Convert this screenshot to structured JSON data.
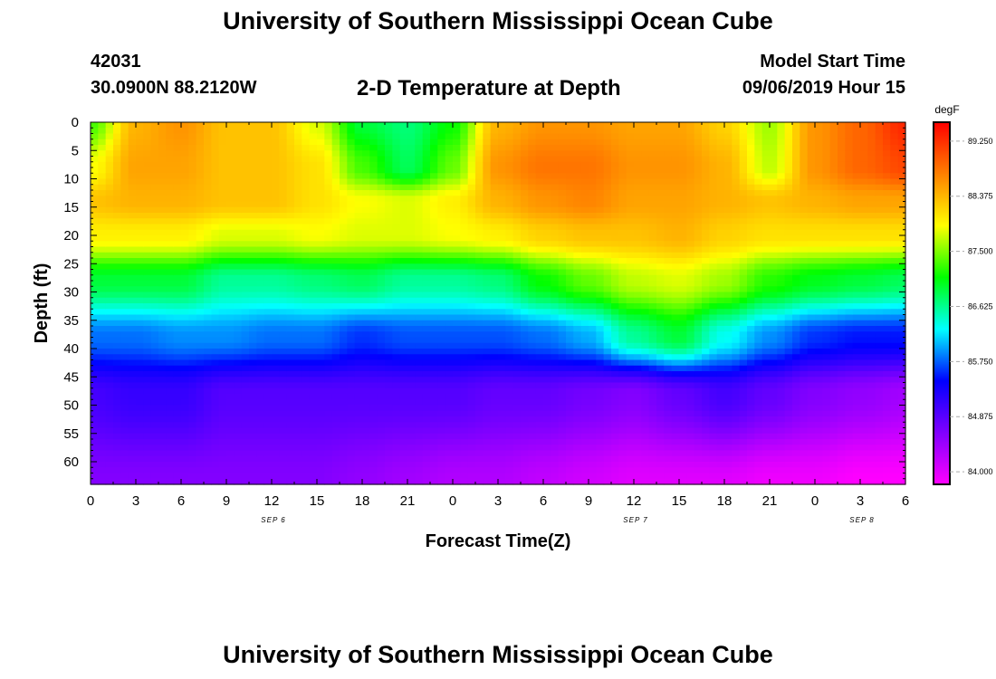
{
  "header": {
    "title": "University of Southern Mississippi Ocean Cube",
    "station_id": "42031",
    "station_coords": "30.0900N 88.2120W",
    "plot_title": "2-D Temperature at Depth",
    "model_start_label": "Model Start Time",
    "model_start_value": "09/06/2019 Hour 15"
  },
  "footer": {
    "title": "University of Southern Mississippi Ocean Cube"
  },
  "chart_data": {
    "type": "heatmap",
    "title": "2-D Temperature at Depth",
    "xlabel": "Forecast Time(Z)",
    "ylabel": "Depth (ft)",
    "x_tick_labels": [
      "0",
      "3",
      "6",
      "9",
      "12",
      "15",
      "18",
      "21",
      "0",
      "3",
      "6",
      "9",
      "12",
      "15",
      "18",
      "21",
      "0",
      "3",
      "6"
    ],
    "date_labels": [
      {
        "label": "SEP 6",
        "at_tick": 4
      },
      {
        "label": "SEP 7",
        "at_tick": 12
      },
      {
        "label": "SEP 8",
        "at_tick": 17
      }
    ],
    "y_tick_labels": [
      "0",
      "5",
      "10",
      "15",
      "20",
      "25",
      "30",
      "35",
      "40",
      "45",
      "50",
      "55",
      "60"
    ],
    "y_ticks": [
      0,
      5,
      10,
      15,
      20,
      25,
      30,
      35,
      40,
      45,
      50,
      55,
      60
    ],
    "ylim": [
      0,
      64
    ],
    "x_hours_range": [
      0,
      54
    ],
    "colorbar": {
      "unit": "degF",
      "ticks": [
        "89.250",
        "88.375",
        "87.500",
        "86.625",
        "85.750",
        "84.875",
        "84.000"
      ],
      "tick_values": [
        89.25,
        88.375,
        87.5,
        86.625,
        85.75,
        84.875,
        84.0
      ],
      "range": [
        83.8,
        89.55
      ],
      "colors": [
        "#ff00ff",
        "#8000ff",
        "#0000ff",
        "#00ffff",
        "#00ff00",
        "#ffff00",
        "#ff8000",
        "#ff0000"
      ]
    },
    "field_description_depths_ft": [
      0,
      8,
      14,
      20,
      28,
      38,
      48,
      64
    ],
    "columns": [
      {
        "hour": 0,
        "temps": [
          87.3,
          87.9,
          88.3,
          88.0,
          86.9,
          85.8,
          85.0,
          84.6
        ]
      },
      {
        "hour": 3,
        "temps": [
          88.4,
          88.5,
          88.4,
          88.0,
          86.9,
          85.8,
          85.1,
          84.6
        ]
      },
      {
        "hour": 6,
        "temps": [
          88.6,
          88.5,
          88.4,
          88.0,
          86.9,
          85.9,
          85.1,
          84.6
        ]
      },
      {
        "hour": 9,
        "temps": [
          88.3,
          88.3,
          88.3,
          87.8,
          86.6,
          85.9,
          84.9,
          84.6
        ]
      },
      {
        "hour": 12,
        "temps": [
          88.3,
          88.3,
          88.3,
          87.8,
          86.6,
          85.8,
          84.9,
          84.6
        ]
      },
      {
        "hour": 15,
        "temps": [
          87.8,
          88.1,
          88.1,
          87.9,
          86.7,
          85.8,
          84.9,
          84.6
        ]
      },
      {
        "hour": 18,
        "temps": [
          86.9,
          87.3,
          87.9,
          87.8,
          86.8,
          85.6,
          84.9,
          84.5
        ]
      },
      {
        "hour": 21,
        "temps": [
          86.7,
          86.8,
          87.8,
          87.8,
          86.6,
          85.7,
          84.9,
          84.4
        ]
      },
      {
        "hour": 24,
        "temps": [
          87.1,
          87.4,
          88.0,
          87.9,
          86.6,
          85.7,
          84.9,
          84.3
        ]
      },
      {
        "hour": 27,
        "temps": [
          88.4,
          88.6,
          88.4,
          88.0,
          86.7,
          85.7,
          84.8,
          84.3
        ]
      },
      {
        "hour": 30,
        "temps": [
          88.6,
          88.8,
          88.6,
          88.2,
          87.1,
          85.8,
          84.8,
          84.2
        ]
      },
      {
        "hour": 33,
        "temps": [
          88.6,
          88.8,
          88.7,
          88.3,
          87.4,
          86.0,
          84.7,
          84.1
        ]
      },
      {
        "hour": 36,
        "temps": [
          88.5,
          88.6,
          88.5,
          88.3,
          87.7,
          86.6,
          84.6,
          84.0
        ]
      },
      {
        "hour": 39,
        "temps": [
          88.5,
          88.6,
          88.5,
          88.4,
          87.8,
          86.9,
          84.8,
          84.0
        ]
      },
      {
        "hour": 42,
        "temps": [
          88.2,
          88.4,
          88.4,
          88.2,
          87.6,
          86.3,
          85.0,
          84.0
        ]
      },
      {
        "hour": 45,
        "temps": [
          87.6,
          87.7,
          88.3,
          88.1,
          87.2,
          85.9,
          84.8,
          83.9
        ]
      },
      {
        "hour": 48,
        "temps": [
          88.6,
          88.6,
          88.4,
          88.1,
          87.0,
          85.6,
          84.6,
          83.9
        ]
      },
      {
        "hour": 51,
        "temps": [
          88.9,
          88.9,
          88.5,
          88.1,
          86.9,
          85.5,
          84.5,
          83.8
        ]
      },
      {
        "hour": 54,
        "temps": [
          89.3,
          89.1,
          88.5,
          88.1,
          86.8,
          85.5,
          84.4,
          83.8
        ]
      }
    ]
  }
}
